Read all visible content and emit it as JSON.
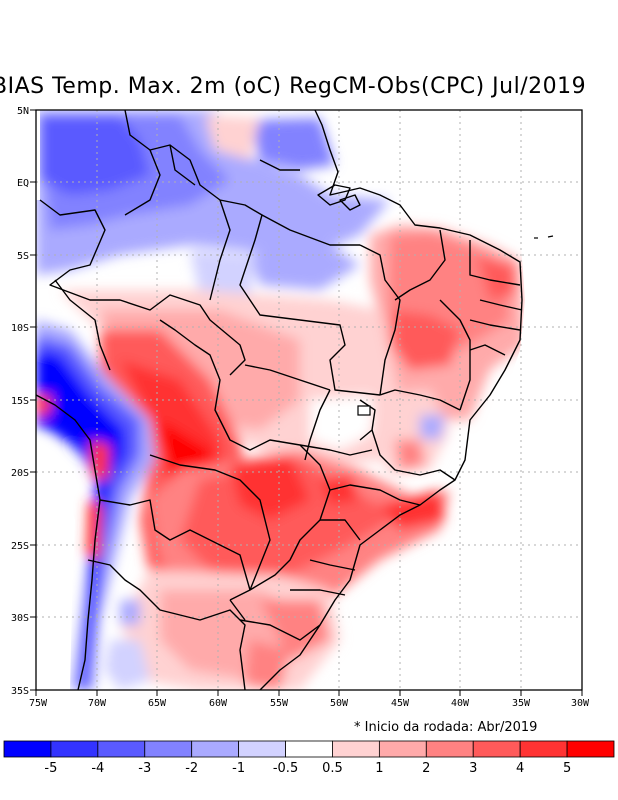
{
  "title": "BIAS Temp. Max. 2m (oC) RegCM-Obs(CPC) Jul/2019",
  "note": "* Inicio da rodada: Abr/2019",
  "lon_ticks": [
    "75W",
    "70W",
    "65W",
    "60W",
    "55W",
    "50W",
    "45W",
    "40W",
    "35W",
    "30W"
  ],
  "lat_ticks": [
    "5N",
    "EQ",
    "5S",
    "10S",
    "15S",
    "20S",
    "25S",
    "30S",
    "35S"
  ],
  "colorbar": {
    "colors": [
      "#0000ff",
      "#3333ff",
      "#5a5aff",
      "#8282ff",
      "#aaaaff",
      "#d2d2ff",
      "#ffffff",
      "#ffd2d2",
      "#ffaaaa",
      "#ff8282",
      "#ff5a5a",
      "#ff3333",
      "#ff0000"
    ],
    "labels": [
      "-5",
      "-4",
      "-3",
      "-2",
      "-1",
      "-0.5",
      "0.5",
      "1",
      "2",
      "3",
      "4",
      "5"
    ]
  }
}
